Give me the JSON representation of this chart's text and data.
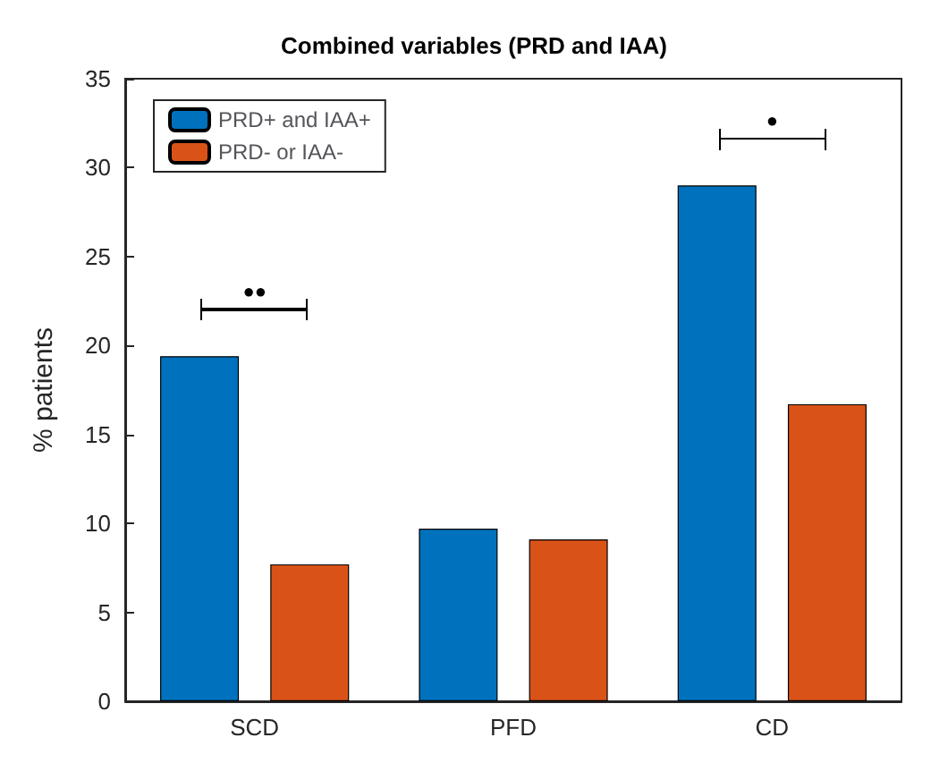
{
  "chart_data": {
    "type": "bar",
    "title": "Combined variables (PRD and IAA)",
    "ylabel": "% patients",
    "categories": [
      "SCD",
      "PFD",
      "CD"
    ],
    "series": [
      {
        "name": "PRD+ and IAA+",
        "color": "#0072bd",
        "values": [
          19.4,
          9.7,
          29.0
        ]
      },
      {
        "name": "PRD- or IAA-",
        "color": "#d95319",
        "values": [
          7.7,
          9.1,
          16.7
        ]
      }
    ],
    "ylim": [
      0,
      35
    ],
    "yticks": [
      0,
      5,
      10,
      15,
      20,
      25,
      30,
      35
    ],
    "grid": false,
    "legend": "top left",
    "annotations": [
      "●●",
      "●"
    ]
  }
}
